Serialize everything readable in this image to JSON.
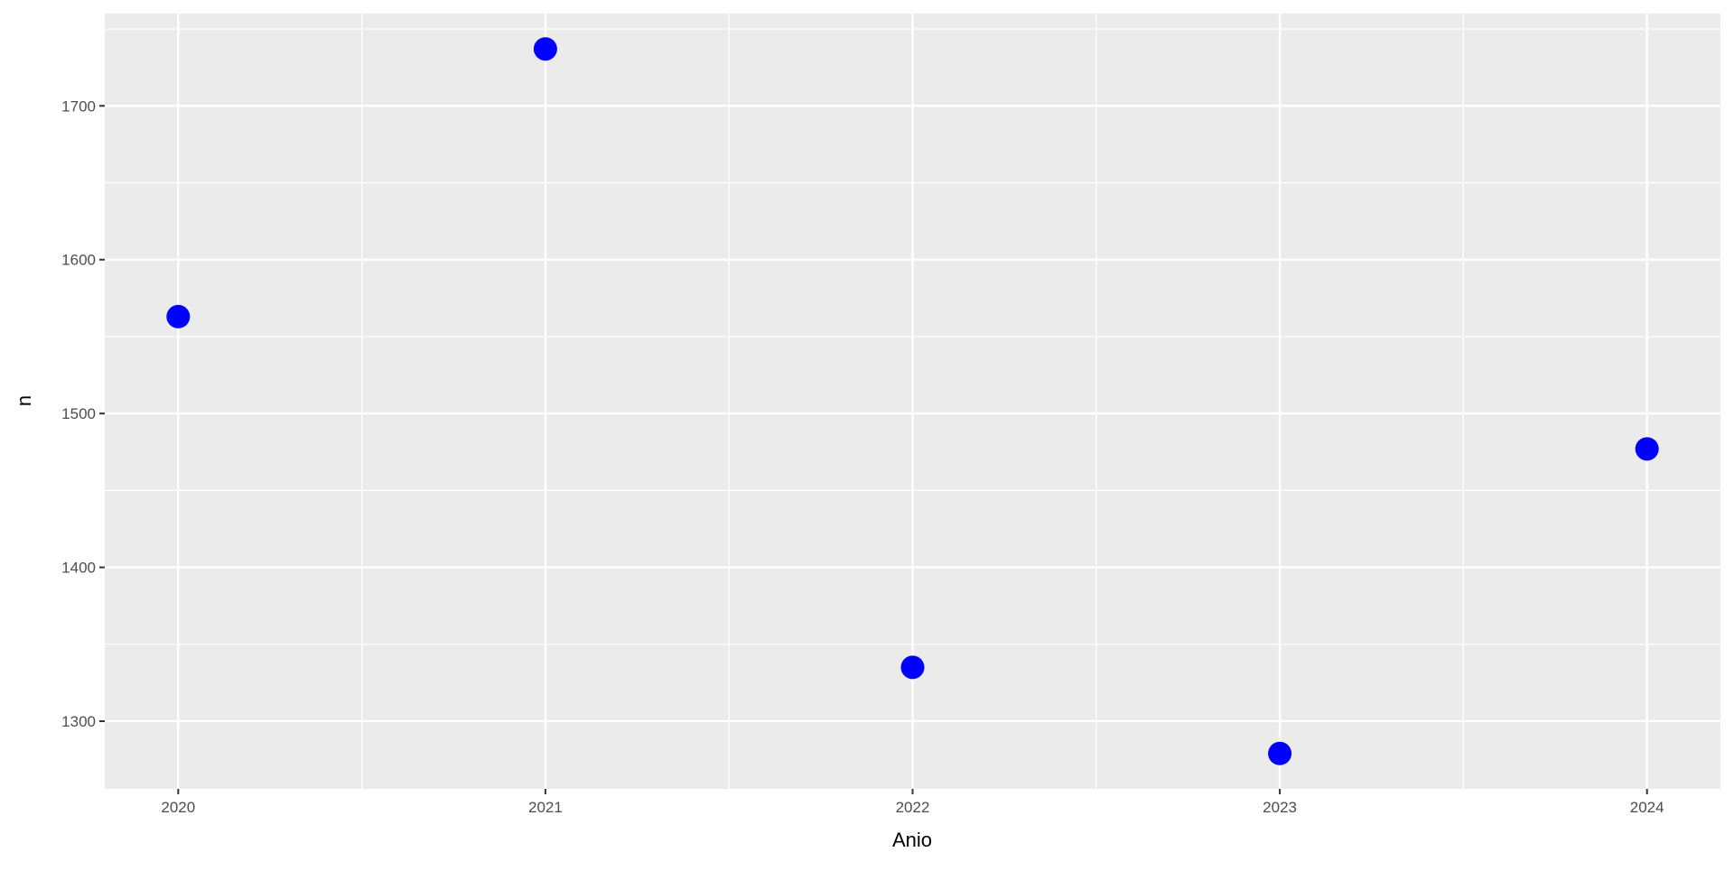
{
  "chart_data": {
    "type": "scatter",
    "title": "",
    "xlabel": "Anio",
    "ylabel": "n",
    "x": [
      2020,
      2021,
      2022,
      2023,
      2024
    ],
    "y": [
      1563,
      1737,
      1335,
      1279,
      1477
    ],
    "xlim": [
      2019.8,
      2024.2
    ],
    "ylim": [
      1256,
      1760
    ],
    "xticks": [
      2020,
      2021,
      2022,
      2023,
      2024
    ],
    "xtick_labels": [
      "2020",
      "2021",
      "2022",
      "2023",
      "2024"
    ],
    "yticks": [
      1300,
      1400,
      1500,
      1600,
      1700
    ],
    "ytick_labels": [
      "1300",
      "1400",
      "1500",
      "1600",
      "1700"
    ],
    "grid": true,
    "legend": "none",
    "colors": {
      "point": "#0000FF",
      "panel": "#EBEBEB",
      "grid": "#FFFFFF"
    }
  }
}
